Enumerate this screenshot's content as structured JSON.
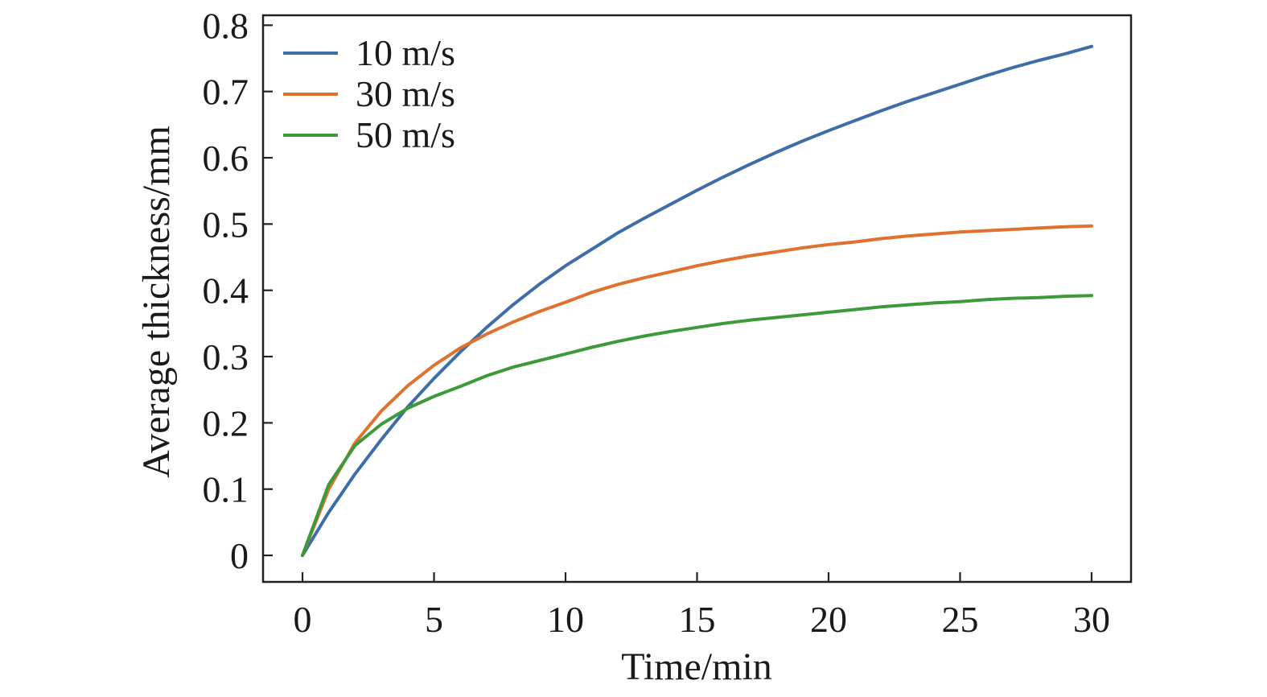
{
  "chart_data": {
    "type": "line",
    "xlabel": "Time/min",
    "ylabel": "Average thickness/mm",
    "xlim": [
      -1.5,
      31.5
    ],
    "ylim": [
      -0.04,
      0.815
    ],
    "xticks": [
      0,
      5,
      10,
      15,
      20,
      25,
      30
    ],
    "xtick_labels": [
      "0",
      "5",
      "10",
      "15",
      "20",
      "25",
      "30"
    ],
    "yticks": [
      0,
      0.1,
      0.2,
      0.3,
      0.4,
      0.5,
      0.6,
      0.7,
      0.8
    ],
    "ytick_labels": [
      "0",
      "0.1",
      "0.2",
      "0.3",
      "0.4",
      "0.5",
      "0.6",
      "0.7",
      "0.8"
    ],
    "grid": false,
    "legend_position": "top-left",
    "x": [
      0,
      1,
      2,
      3,
      4,
      5,
      6,
      7,
      8,
      9,
      10,
      11,
      12,
      13,
      14,
      15,
      16,
      17,
      18,
      19,
      20,
      21,
      22,
      23,
      24,
      25,
      26,
      27,
      28,
      29,
      30
    ],
    "series": [
      {
        "name": "10 m/s",
        "color": "#3e6ea8",
        "values": [
          0.0,
          0.065,
          0.123,
          0.175,
          0.224,
          0.267,
          0.307,
          0.344,
          0.378,
          0.409,
          0.437,
          0.462,
          0.487,
          0.509,
          0.53,
          0.551,
          0.571,
          0.59,
          0.608,
          0.625,
          0.641,
          0.656,
          0.671,
          0.685,
          0.698,
          0.711,
          0.724,
          0.736,
          0.747,
          0.757,
          0.768
        ]
      },
      {
        "name": "30 m/s",
        "color": "#e0712e",
        "values": [
          0.0,
          0.1,
          0.17,
          0.218,
          0.256,
          0.287,
          0.313,
          0.334,
          0.352,
          0.368,
          0.382,
          0.397,
          0.409,
          0.419,
          0.428,
          0.437,
          0.445,
          0.452,
          0.458,
          0.464,
          0.469,
          0.473,
          0.478,
          0.482,
          0.485,
          0.488,
          0.49,
          0.492,
          0.494,
          0.496,
          0.497
        ]
      },
      {
        "name": "50 m/s",
        "color": "#3d9a3a",
        "values": [
          0.0,
          0.107,
          0.166,
          0.198,
          0.222,
          0.24,
          0.255,
          0.271,
          0.284,
          0.294,
          0.304,
          0.314,
          0.323,
          0.331,
          0.338,
          0.344,
          0.35,
          0.355,
          0.359,
          0.363,
          0.367,
          0.371,
          0.375,
          0.378,
          0.381,
          0.383,
          0.386,
          0.388,
          0.389,
          0.391,
          0.392
        ]
      }
    ]
  }
}
